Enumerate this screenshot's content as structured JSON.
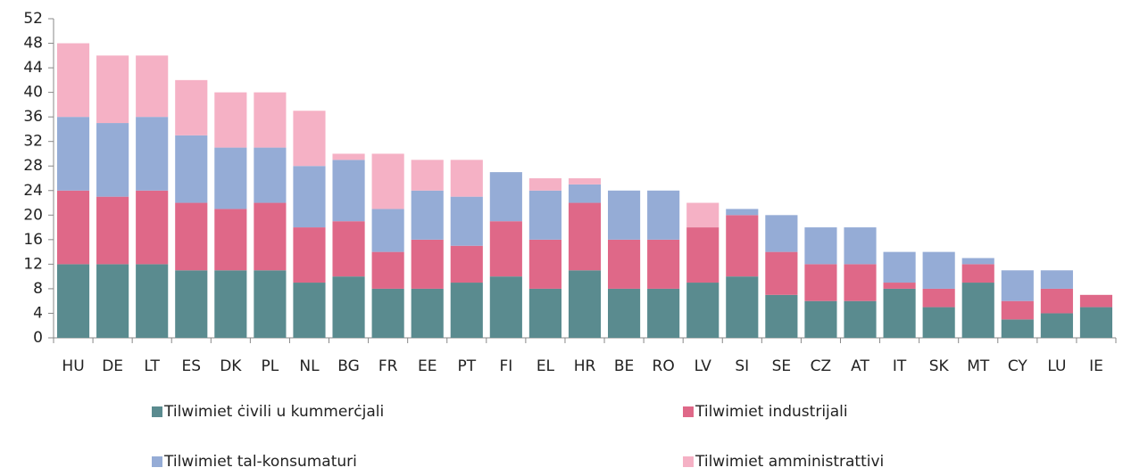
{
  "chart_data": {
    "type": "stacked_bar",
    "categories": [
      "HU",
      "DE",
      "LT",
      "ES",
      "DK",
      "PL",
      "NL",
      "BG",
      "FR",
      "EE",
      "PT",
      "FI",
      "EL",
      "HR",
      "BE",
      "RO",
      "LV",
      "SI",
      "SE",
      "CZ",
      "AT",
      "IT",
      "SK",
      "MT",
      "CY",
      "LU",
      "IE"
    ],
    "series": [
      {
        "name": "Tilwimiet ċivili u kummerċjali",
        "color": "#5a8b8f",
        "values": [
          12,
          12,
          12,
          11,
          11,
          11,
          9,
          10,
          8,
          8,
          9,
          10,
          8,
          11,
          8,
          8,
          9,
          10,
          7,
          6,
          6,
          8,
          5,
          9,
          3,
          4,
          5
        ]
      },
      {
        "name": "Tilwimiet industrijali",
        "color": "#df6888",
        "values": [
          12,
          11,
          12,
          11,
          10,
          11,
          9,
          9,
          6,
          8,
          6,
          9,
          8,
          11,
          8,
          8,
          9,
          10,
          7,
          6,
          6,
          1,
          3,
          3,
          3,
          4,
          2
        ]
      },
      {
        "name": "Tilwimiet tal-konsumaturi",
        "color": "#95acd6",
        "values": [
          12,
          12,
          12,
          11,
          10,
          9,
          10,
          10,
          7,
          8,
          8,
          8,
          8,
          3,
          8,
          8,
          0,
          1,
          6,
          6,
          6,
          5,
          6,
          1,
          5,
          3,
          0
        ]
      },
      {
        "name": "Tilwimiet amministrattivi",
        "color": "#f5b1c5",
        "values": [
          12,
          11,
          10,
          9,
          9,
          9,
          9,
          1,
          9,
          5,
          6,
          0,
          2,
          1,
          0,
          0,
          4,
          0,
          0,
          0,
          0,
          0,
          0,
          0,
          0,
          0,
          0
        ]
      }
    ],
    "ylim": [
      0,
      52
    ],
    "yticks": [
      0,
      4,
      8,
      12,
      16,
      20,
      24,
      28,
      32,
      36,
      40,
      44,
      48,
      52
    ],
    "grid": false
  }
}
